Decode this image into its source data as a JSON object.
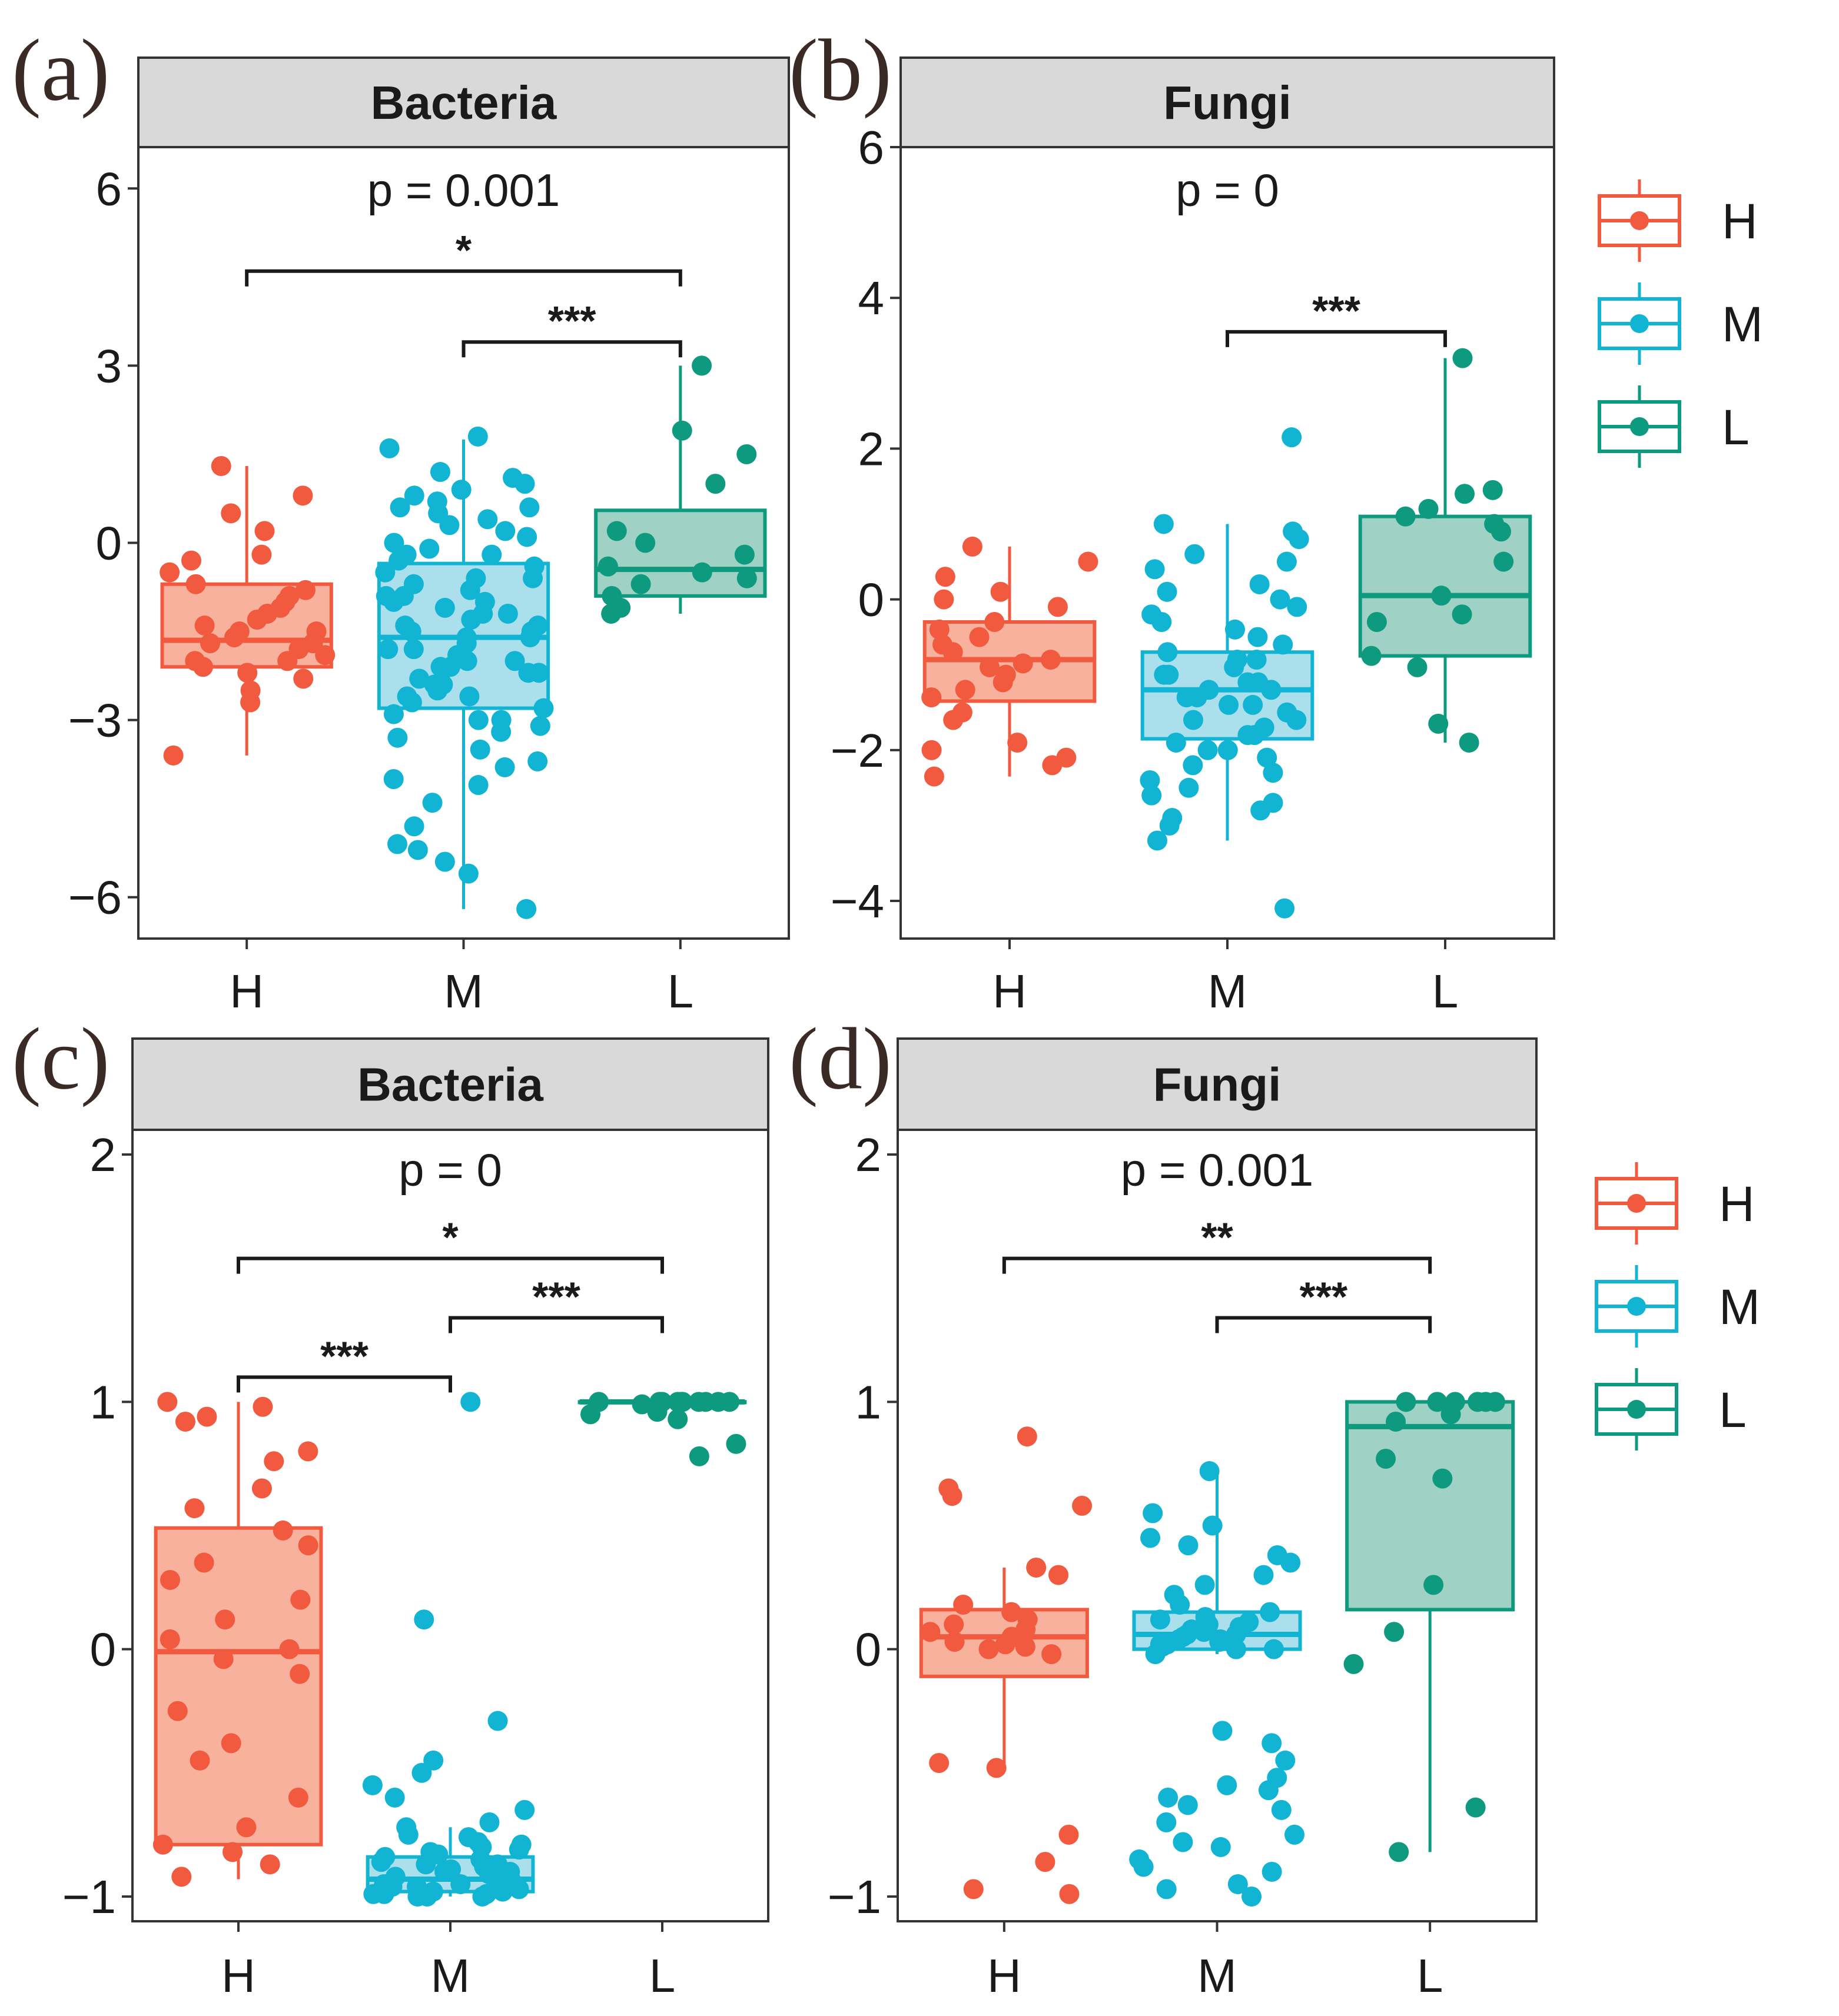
{
  "legend": {
    "entries": [
      {
        "label": "H",
        "color": "#F15A3F"
      },
      {
        "label": "M",
        "color": "#11B5D3"
      },
      {
        "label": "L",
        "color": "#0E9A7E"
      }
    ]
  },
  "chart_data": [
    {
      "panel": "(a)",
      "type": "box",
      "strip": "Bacteria",
      "categories": [
        "H",
        "M",
        "L"
      ],
      "ylim": [
        -6.7,
        6.7
      ],
      "yticks": [
        6,
        3,
        0,
        -3,
        -6
      ],
      "ytick_labels": [
        "6",
        "3",
        "0",
        "−3",
        "−6"
      ],
      "p_label": "p = 0.001",
      "comparisons": [
        {
          "from": "H",
          "to": "L",
          "label": "*",
          "y": 4.6
        },
        {
          "from": "M",
          "to": "L",
          "label": "***",
          "y": 3.4
        }
      ],
      "series": [
        {
          "name": "H",
          "q1": -2.1,
          "median": -1.65,
          "q3": -0.7,
          "whisker_low": -3.6,
          "whisker_high": 1.3,
          "points": [
            -0.7,
            -1.0,
            -1.3,
            -1.5,
            -1.7,
            -1.8,
            -2.0,
            -2.2,
            -2.5,
            -2.7,
            -0.5,
            -0.2,
            0.2,
            0.5,
            0.8,
            1.3,
            -1.6,
            -1.4,
            -1.9,
            -1.1,
            -0.8,
            -2.3,
            -3.6,
            -1.2,
            -1.5,
            -2.1,
            -0.9,
            -0.3,
            -1.7,
            -2.0
          ]
        },
        {
          "name": "M",
          "q1": -2.8,
          "median": -1.6,
          "q3": -0.35,
          "whisker_low": -6.2,
          "whisker_high": 1.75,
          "points": [
            1.8,
            1.6,
            1.2,
            1.0,
            0.8,
            0.6,
            0.4,
            0.2,
            0.0,
            -0.2,
            -0.4,
            -0.6,
            -0.8,
            -1.0,
            -1.2,
            -1.4,
            -1.6,
            -1.8,
            -2.0,
            -2.2,
            -2.4,
            -2.6,
            -2.8,
            -3.0,
            -3.2,
            -3.5,
            -3.8,
            -4.1,
            -4.4,
            -4.8,
            -5.1,
            -5.4,
            -6.2,
            0.3,
            -0.1,
            -0.5,
            -0.9,
            -1.3,
            -1.7,
            -2.1,
            -2.5,
            -2.9,
            -3.3,
            -3.7,
            -4.0,
            -5.2,
            -5.6,
            0.9,
            0.5,
            -0.3,
            -1.1,
            -1.5,
            -1.9,
            -2.3,
            -2.7,
            -3.1,
            0.7,
            -0.7,
            -2.0,
            -1.0,
            -1.6,
            -2.4,
            -0.2,
            -1.2,
            -1.8,
            -2.6,
            0.1,
            -0.6,
            -1.4,
            -2.2,
            -3.0,
            -0.9,
            -1.5,
            -2.1,
            1.1,
            0.6
          ]
        },
        {
          "name": "L",
          "q1": -0.9,
          "median": -0.45,
          "q3": 0.55,
          "whisker_low": -1.2,
          "whisker_high": 3.0,
          "points": [
            3.0,
            1.9,
            1.5,
            1.0,
            0.2,
            0.0,
            -0.2,
            -0.5,
            -0.6,
            -0.9,
            -1.1,
            -1.2,
            -0.4,
            -0.7
          ]
        }
      ]
    },
    {
      "panel": "(b)",
      "type": "box",
      "strip": "Fungi",
      "categories": [
        "H",
        "M",
        "L"
      ],
      "ylim": [
        -4.5,
        6.0
      ],
      "yticks": [
        6,
        4,
        2,
        0,
        -2,
        -4
      ],
      "ytick_labels": [
        "6",
        "4",
        "2",
        "0",
        "−2",
        "−4"
      ],
      "p_label": "p = 0",
      "comparisons": [
        {
          "from": "M",
          "to": "L",
          "label": "***",
          "y": 3.55
        }
      ],
      "series": [
        {
          "name": "H",
          "q1": -1.35,
          "median": -0.8,
          "q3": -0.3,
          "whisker_low": -2.35,
          "whisker_high": 0.7,
          "points": [
            0.7,
            0.5,
            0.3,
            0.1,
            -0.1,
            -0.3,
            -0.5,
            -0.7,
            -0.9,
            -1.1,
            -1.3,
            -1.5,
            -1.9,
            -2.1,
            -2.2,
            -2.35,
            -0.6,
            -0.8,
            -1.0,
            -1.2,
            0.0,
            -0.4,
            -2.0,
            -0.85,
            -1.6
          ]
        },
        {
          "name": "M",
          "q1": -1.85,
          "median": -1.2,
          "q3": -0.7,
          "whisker_low": -3.2,
          "whisker_high": 1.0,
          "points": [
            2.15,
            1.0,
            0.8,
            0.6,
            0.4,
            0.2,
            0.0,
            -0.2,
            -0.4,
            -0.6,
            -0.8,
            -1.0,
            -1.2,
            -1.4,
            -1.6,
            -1.8,
            -2.0,
            -2.2,
            -2.4,
            -2.6,
            -2.8,
            -3.0,
            -3.2,
            -4.1,
            -0.3,
            -0.7,
            -1.1,
            -1.5,
            -1.9,
            -2.3,
            -2.7,
            -0.9,
            -1.3,
            -1.7,
            -2.1,
            -0.5,
            -1.0,
            -1.4,
            -1.8,
            0.1,
            -0.1,
            -1.2,
            -1.6,
            -2.5,
            -0.8,
            -1.1,
            -1.3,
            -2.0,
            -2.9,
            0.5,
            0.9
          ]
        },
        {
          "name": "L",
          "q1": -0.75,
          "median": 0.05,
          "q3": 1.1,
          "whisker_low": -1.9,
          "whisker_high": 3.2,
          "points": [
            3.2,
            1.45,
            1.4,
            1.2,
            1.1,
            0.9,
            0.5,
            0.05,
            -0.3,
            -0.75,
            -0.9,
            -1.65,
            -1.9,
            1.0,
            -0.2
          ]
        }
      ]
    },
    {
      "panel": "(c)",
      "type": "box",
      "strip": "Bacteria",
      "categories": [
        "H",
        "M",
        "L"
      ],
      "ylim": [
        -1.1,
        2.1
      ],
      "yticks": [
        2,
        1,
        0,
        -1
      ],
      "ytick_labels": [
        "2",
        "1",
        "0",
        "−1"
      ],
      "p_label": "p = 0",
      "comparisons": [
        {
          "from": "H",
          "to": "L",
          "label": "*",
          "y": 1.58
        },
        {
          "from": "M",
          "to": "L",
          "label": "***",
          "y": 1.34
        },
        {
          "from": "H",
          "to": "M",
          "label": "***",
          "y": 1.1
        }
      ],
      "series": [
        {
          "name": "H",
          "q1": -0.79,
          "median": -0.01,
          "q3": 0.49,
          "whisker_low": -0.93,
          "whisker_high": 1.0,
          "points": [
            1.0,
            0.98,
            0.94,
            0.92,
            0.8,
            0.76,
            0.57,
            0.48,
            0.42,
            0.28,
            0.12,
            0.04,
            0.0,
            -0.04,
            -0.38,
            -0.45,
            -0.6,
            -0.72,
            -0.79,
            -0.82,
            -0.87,
            -0.92,
            0.2,
            -0.25,
            0.65,
            0.35,
            -0.1
          ]
        },
        {
          "name": "M",
          "q1": -0.98,
          "median": -0.93,
          "q3": -0.84,
          "whisker_low": -1.0,
          "whisker_high": -0.72,
          "points": [
            1.0,
            0.12,
            -0.29,
            -0.45,
            -0.5,
            -0.55,
            -0.6,
            -0.65,
            -0.7,
            -0.75,
            -0.78,
            -0.8,
            -0.82,
            -0.85,
            -0.87,
            -0.9,
            -0.92,
            -0.94,
            -0.96,
            -0.98,
            -1.0,
            -0.83,
            -0.88,
            -0.91,
            -0.95,
            -0.97,
            -0.99,
            -0.76,
            -0.86,
            -0.93,
            -0.99,
            -0.81,
            -0.89,
            -0.94,
            -1.0,
            -0.72,
            -0.84,
            -0.96,
            -0.98,
            -0.9,
            -0.87,
            -0.95,
            -0.99,
            -1.0,
            -0.97,
            -0.92,
            -0.88,
            -0.79
          ]
        },
        {
          "name": "L",
          "q1": 1.0,
          "median": 1.0,
          "q3": 1.0,
          "whisker_low": 1.0,
          "whisker_high": 1.0,
          "points": [
            1.0,
            1.0,
            1.0,
            1.0,
            1.0,
            1.0,
            1.0,
            1.0,
            1.0,
            1.0,
            0.99,
            0.95,
            0.93,
            0.83,
            0.78,
            0.96
          ]
        }
      ]
    },
    {
      "panel": "(d)",
      "type": "box",
      "strip": "Fungi",
      "categories": [
        "H",
        "M",
        "L"
      ],
      "ylim": [
        -1.1,
        2.1
      ],
      "yticks": [
        2,
        1,
        0,
        -1
      ],
      "ytick_labels": [
        "2",
        "1",
        "0",
        "−1"
      ],
      "p_label": "p = 0.001",
      "comparisons": [
        {
          "from": "H",
          "to": "L",
          "label": "**",
          "y": 1.58
        },
        {
          "from": "M",
          "to": "L",
          "label": "***",
          "y": 1.34
        }
      ],
      "series": [
        {
          "name": "H",
          "q1": -0.11,
          "median": 0.05,
          "q3": 0.16,
          "whisker_low": -0.48,
          "whisker_high": 0.33,
          "points": [
            0.86,
            0.65,
            0.62,
            0.58,
            0.33,
            0.3,
            0.18,
            0.15,
            0.12,
            0.08,
            0.05,
            0.03,
            0.01,
            0.0,
            -0.02,
            -0.46,
            -0.48,
            -0.75,
            -0.86,
            -0.97,
            -0.99,
            0.1,
            0.04,
            0.07,
            0.02
          ]
        },
        {
          "name": "M",
          "q1": 0.0,
          "median": 0.06,
          "q3": 0.15,
          "whisker_low": -0.02,
          "whisker_high": 0.72,
          "points": [
            0.72,
            0.55,
            0.5,
            0.45,
            0.42,
            0.38,
            0.35,
            0.3,
            0.26,
            0.22,
            0.18,
            0.15,
            0.12,
            0.09,
            0.06,
            0.04,
            0.02,
            0.0,
            -0.02,
            -0.33,
            -0.38,
            -0.45,
            -0.52,
            -0.57,
            -0.6,
            -0.65,
            -0.7,
            -0.75,
            -0.8,
            -0.85,
            -0.9,
            -0.95,
            -0.97,
            -1.0,
            0.1,
            0.07,
            0.03,
            0.01,
            0.05,
            0.08,
            0.13,
            0.11,
            0.02,
            0.0,
            0.04,
            0.06,
            -0.55,
            -0.78,
            -0.88,
            -0.63
          ]
        },
        {
          "name": "L",
          "q1": 0.16,
          "median": 0.9,
          "q3": 1.0,
          "whisker_low": -0.82,
          "whisker_high": 1.0,
          "points": [
            1.0,
            1.0,
            1.0,
            1.0,
            1.0,
            0.95,
            0.92,
            0.77,
            0.69,
            0.26,
            0.07,
            -0.06,
            -0.64,
            -0.82,
            1.0
          ]
        }
      ]
    }
  ]
}
